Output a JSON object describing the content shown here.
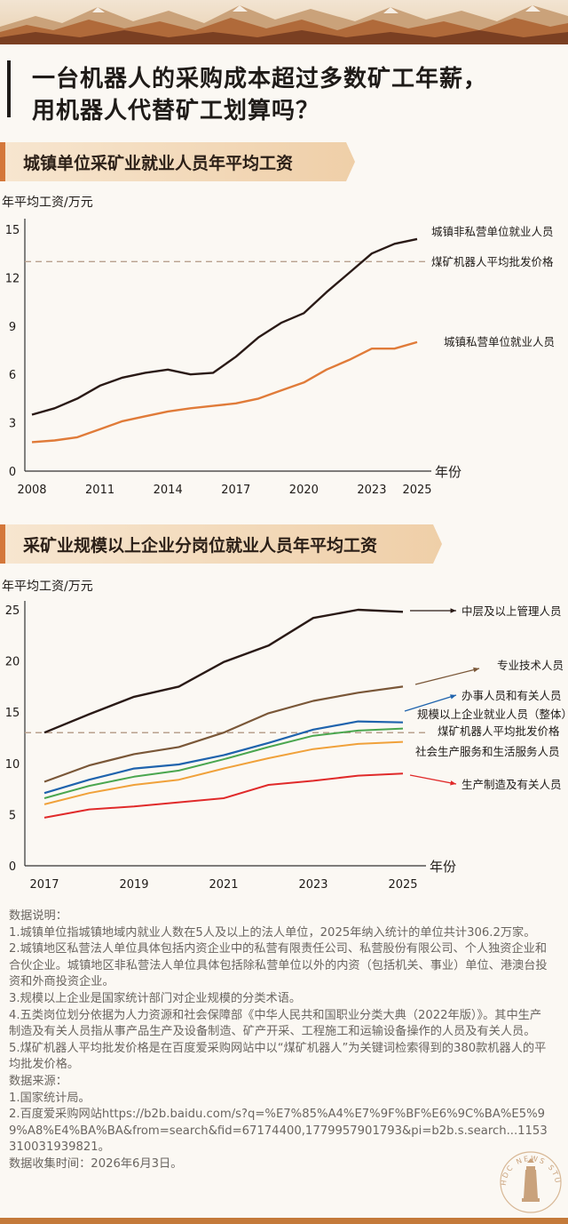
{
  "title": {
    "line1": "一台机器人的采购成本超过多数矿工年薪，",
    "line2": "用机器人代替矿工划算吗？"
  },
  "colors": {
    "accent": "#d4773a",
    "dark_line": "#2a1a16",
    "orange_line": "#e07b39",
    "dashed": "#b8a08e",
    "brown_line": "#7a5738",
    "blue_line": "#1f63ad",
    "green_line": "#4aa64f",
    "amber_line": "#f0a13a",
    "red_line": "#e02a2a"
  },
  "chart_data": [
    {
      "type": "line",
      "section_title": "城镇单位采矿业就业人员年平均工资",
      "ylabel": "年平均工资/万元",
      "xlabel": "年份",
      "ylim": [
        0,
        15
      ],
      "yticks": [
        0,
        3,
        6,
        9,
        12,
        15
      ],
      "xlim": [
        2008,
        2025
      ],
      "xticks": [
        2008,
        2011,
        2014,
        2017,
        2020,
        2023,
        2025
      ],
      "grid": false,
      "x": [
        2008,
        2009,
        2010,
        2011,
        2012,
        2013,
        2014,
        2015,
        2016,
        2017,
        2018,
        2019,
        2020,
        2021,
        2022,
        2023,
        2024,
        2025
      ],
      "series": [
        {
          "name": "城镇非私营单位就业人员",
          "values": [
            3.5,
            3.9,
            4.5,
            5.3,
            5.8,
            6.1,
            6.3,
            6.0,
            6.1,
            7.1,
            8.3,
            9.2,
            9.8,
            11.1,
            12.3,
            13.5,
            14.1,
            14.4
          ]
        },
        {
          "name": "城镇私营单位就业人员",
          "values": [
            1.8,
            1.9,
            2.1,
            2.6,
            3.1,
            3.4,
            3.7,
            3.9,
            4.05,
            4.2,
            4.5,
            5.0,
            5.5,
            6.3,
            6.9,
            7.6,
            7.6,
            8.0
          ]
        }
      ],
      "reference": {
        "name": "煤矿机器人平均批发价格",
        "value": 13.0
      }
    },
    {
      "type": "line",
      "section_title": "采矿业规模以上企业分岗位就业人员年平均工资",
      "ylabel": "年平均工资/万元",
      "xlabel": "年份",
      "ylim": [
        0,
        25
      ],
      "yticks": [
        0,
        5,
        10,
        15,
        20,
        25
      ],
      "xlim": [
        2017,
        2025
      ],
      "xticks": [
        2017,
        2019,
        2021,
        2023,
        2025
      ],
      "grid": false,
      "x": [
        2017,
        2018,
        2019,
        2020,
        2021,
        2022,
        2023,
        2024,
        2025
      ],
      "series": [
        {
          "name": "中层及以上管理人员",
          "values": [
            13.0,
            14.8,
            16.5,
            17.5,
            19.9,
            21.5,
            24.2,
            25.0,
            24.8
          ]
        },
        {
          "name": "专业技术人员",
          "values": [
            8.2,
            9.8,
            10.9,
            11.6,
            13.0,
            14.9,
            16.1,
            16.9,
            17.5
          ]
        },
        {
          "name": "办事人员和有关人员",
          "values": [
            7.1,
            8.4,
            9.5,
            9.9,
            10.8,
            12.0,
            13.3,
            14.1,
            14.0
          ]
        },
        {
          "name": "规模以上企业就业人员（整体）",
          "values": [
            6.6,
            7.8,
            8.7,
            9.3,
            10.4,
            11.6,
            12.7,
            13.2,
            13.4
          ]
        },
        {
          "name": "社会生产服务和生活服务人员",
          "values": [
            6.0,
            7.1,
            7.9,
            8.4,
            9.5,
            10.5,
            11.4,
            11.9,
            12.1
          ]
        },
        {
          "name": "生产制造及有关人员",
          "values": [
            4.7,
            5.5,
            5.8,
            6.2,
            6.6,
            7.9,
            8.3,
            8.8,
            9.0
          ]
        }
      ],
      "reference": {
        "name": "煤矿机器人平均批发价格",
        "value": 13.0
      }
    }
  ],
  "notes": {
    "header": "数据说明：",
    "items": [
      "1.城镇单位指城镇地域内就业人数在5人及以上的法人单位，2025年纳入统计的单位共计306.2万家。",
      "2.城镇地区私营法人单位具体包括内资企业中的私营有限责任公司、私营股份有限公司、个人独资企业和合伙企业。城镇地区非私营法人单位具体包括除私营单位以外的内资（包括机关、事业）单位、港澳台投资和外商投资企业。",
      "3.规模以上企业是国家统计部门对企业规模的分类术语。",
      "4.五类岗位划分依据为人力资源和社会保障部《中华人民共和国职业分类大典（2022年版）》。其中生产制造及有关人员指从事产品生产及设备制造、矿产开采、工程施工和运输设备操作的人员及有关人员。",
      "5.煤矿机器人平均批发价格是在百度爱采购网站中以“煤矿机器人”为关键词检索得到的380款机器人的平均批发价格。"
    ],
    "source_header": "数据来源：",
    "sources": [
      "1.国家统计局。",
      "2.百度爱采购网站https://b2b.baidu.com/s?q=%E7%85%A4%E7%9F%BF%E6%9C%BA%E5%99%A8%E4%BA%BA&from=search&fid=67174400,1779957901793&pi=b2b.s.search...1153310031939821。"
    ],
    "date": "数据收集时间：2026年6月3日。"
  },
  "stamp": {
    "text": "HDC NEWS STUDIO",
    "icon": "lighthouse-icon"
  }
}
